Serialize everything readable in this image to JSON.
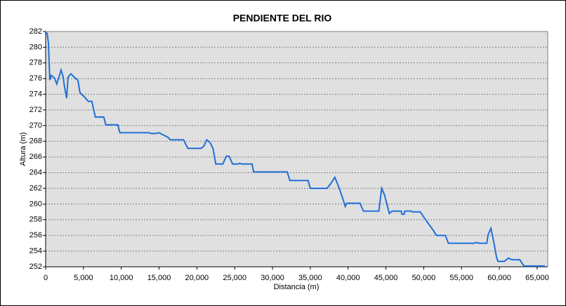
{
  "chart_data": {
    "type": "line",
    "title": "PENDIENTE DEL RIO",
    "x_label": "Distancia (m)",
    "y_label": "Altura (m)",
    "x": [
      0,
      200,
      370,
      460,
      560,
      740,
      1020,
      1200,
      1480,
      1760,
      2040,
      2310,
      2500,
      2780,
      2960,
      3330,
      3980,
      4260,
      4540,
      5090,
      5650,
      6110,
      6570,
      7690,
      7960,
      9540,
      9820,
      13700,
      13900,
      14540,
      15000,
      15560,
      16200,
      16480,
      18240,
      18800,
      20560,
      20930,
      21300,
      21760,
      22130,
      22500,
      23430,
      23890,
      24260,
      24720,
      25460,
      25650,
      25930,
      27300,
      27500,
      31950,
      32300,
      34700,
      35000,
      37200,
      37700,
      38240,
      38600,
      39260,
      39630,
      39800,
      41580,
      42030,
      44070,
      44440,
      44800,
      45450,
      45820,
      47030,
      47130,
      47400,
      47500,
      48330,
      48520,
      49540,
      50100,
      51300,
      51670,
      52870,
      53250,
      56670,
      56950,
      57320,
      58340,
      58520,
      58890,
      59260,
      59630,
      59820,
      60650,
      61200,
      61670,
      62690,
      63250,
      66030
    ],
    "series": [
      {
        "name": "Altura",
        "color": "#1f6fd8",
        "values": [
          282,
          281.7,
          280.5,
          278,
          275.8,
          276.4,
          276.2,
          276,
          275.3,
          276.2,
          277.1,
          276.2,
          274.9,
          273.5,
          276.2,
          276.6,
          276,
          275.8,
          274.2,
          273.7,
          273.1,
          273.1,
          271.1,
          271.1,
          270.1,
          270.1,
          269.1,
          269.1,
          269,
          269,
          269.1,
          268.8,
          268.5,
          268.2,
          268.2,
          267.1,
          267.1,
          267.4,
          268.2,
          267.8,
          267.1,
          265.1,
          265.1,
          266.1,
          266.1,
          265.1,
          265.1,
          265.2,
          265.1,
          265.1,
          264.1,
          264.1,
          263,
          263,
          262,
          262,
          262.6,
          263.4,
          262.6,
          260.8,
          259.7,
          260.1,
          260.1,
          259.1,
          259.1,
          262,
          261.2,
          258.8,
          259.1,
          259.1,
          258.7,
          258.7,
          259.1,
          259.1,
          259,
          259,
          258.2,
          256.6,
          256,
          256,
          255,
          255,
          255.1,
          255,
          255,
          256.1,
          256.9,
          255.2,
          253.2,
          252.7,
          252.7,
          253.1,
          252.9,
          252.9,
          252.1,
          252.1
        ]
      }
    ],
    "xlim": [
      0,
      66400
    ],
    "ylim": [
      252,
      282
    ],
    "xticks": [
      0,
      {
        "value": 5000,
        "label": "5,000"
      },
      {
        "value": 10000,
        "label": "10,000"
      },
      {
        "value": 15000,
        "label": "15,000"
      },
      {
        "value": 20000,
        "label": "20,000"
      },
      {
        "value": 25000,
        "label": "25,000"
      },
      {
        "value": 30000,
        "label": "30,000"
      },
      {
        "value": 35000,
        "label": "35,000"
      },
      {
        "value": 40000,
        "label": "40,000"
      },
      {
        "value": 45000,
        "label": "45,000"
      },
      {
        "value": 50000,
        "label": "50,000"
      },
      {
        "value": 55000,
        "label": "55,000"
      },
      {
        "value": 60000,
        "label": "60,000"
      },
      {
        "value": 65000,
        "label": "65,000"
      }
    ],
    "yticks": [
      252,
      254,
      256,
      258,
      260,
      262,
      264,
      266,
      268,
      270,
      272,
      274,
      276,
      278,
      280,
      282
    ],
    "grid": true
  }
}
